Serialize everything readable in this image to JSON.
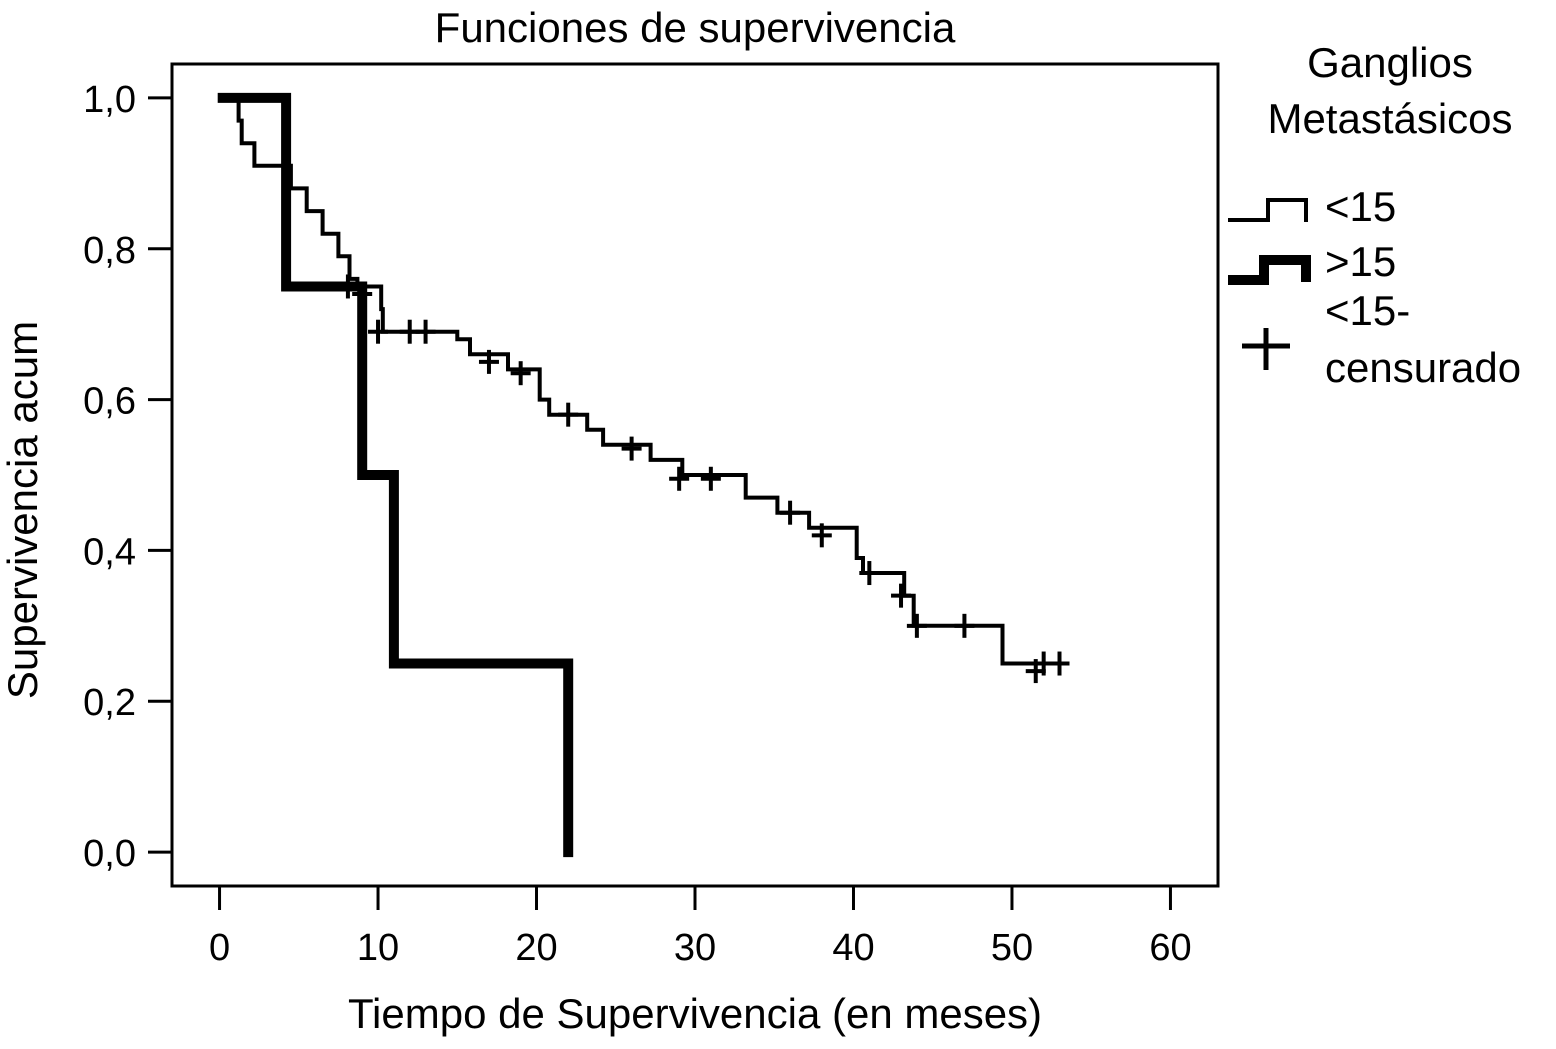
{
  "chart_data": {
    "type": "line",
    "title": "Funciones de supervivencia",
    "xlabel": "Tiempo de Supervivencia (en meses)",
    "ylabel": "Supervivencia acum",
    "xlim": [
      -3,
      63
    ],
    "ylim": [
      -0.045,
      1.045
    ],
    "x_ticks": [
      0,
      10,
      20,
      30,
      40,
      50,
      60
    ],
    "x_tick_labels": [
      "0",
      "10",
      "20",
      "30",
      "40",
      "50",
      "60"
    ],
    "y_ticks": [
      0.0,
      0.2,
      0.4,
      0.6,
      0.8,
      1.0
    ],
    "y_tick_labels": [
      "0,0",
      "0,2",
      "0,4",
      "0,6",
      "0,8",
      "1,0"
    ],
    "grid": false,
    "legend": {
      "title_lines": [
        "Ganglios",
        "Metastásicos"
      ],
      "placement": "right",
      "entries": [
        "<15",
        ">15"
      ],
      "censored_label_lines": [
        "<15-",
        "censurado"
      ]
    },
    "series": [
      {
        "name": "<15",
        "step": true,
        "color": "#000000",
        "weight": "thin",
        "points": [
          [
            0.2,
            1.0
          ],
          [
            1.2,
            0.97
          ],
          [
            1.4,
            0.94
          ],
          [
            2.2,
            0.91
          ],
          [
            4.5,
            0.88
          ],
          [
            5.5,
            0.85
          ],
          [
            6.5,
            0.82
          ],
          [
            7.5,
            0.79
          ],
          [
            8.2,
            0.76
          ],
          [
            8.7,
            0.75
          ],
          [
            10.2,
            0.72
          ],
          [
            10.3,
            0.69
          ],
          [
            15.0,
            0.68
          ],
          [
            15.8,
            0.66
          ],
          [
            18.2,
            0.64
          ],
          [
            20.2,
            0.6
          ],
          [
            20.8,
            0.58
          ],
          [
            23.2,
            0.56
          ],
          [
            24.2,
            0.54
          ],
          [
            27.2,
            0.52
          ],
          [
            29.2,
            0.5
          ],
          [
            33.2,
            0.47
          ],
          [
            35.2,
            0.45
          ],
          [
            37.2,
            0.43
          ],
          [
            40.2,
            0.39
          ],
          [
            40.6,
            0.37
          ],
          [
            43.2,
            0.34
          ],
          [
            43.8,
            0.3
          ],
          [
            49.4,
            0.25
          ],
          [
            53.4,
            0.25
          ]
        ],
        "censored": [
          [
            8.1,
            0.75
          ],
          [
            9.0,
            0.74
          ],
          [
            10.0,
            0.69
          ],
          [
            12.0,
            0.69
          ],
          [
            13.0,
            0.69
          ],
          [
            17.0,
            0.65
          ],
          [
            19.0,
            0.635
          ],
          [
            22.0,
            0.58
          ],
          [
            26.0,
            0.535
          ],
          [
            29.0,
            0.495
          ],
          [
            31.0,
            0.495
          ],
          [
            36.0,
            0.45
          ],
          [
            38.0,
            0.42
          ],
          [
            41.0,
            0.37
          ],
          [
            43.0,
            0.34
          ],
          [
            44.0,
            0.3
          ],
          [
            47.0,
            0.3
          ],
          [
            51.5,
            0.24
          ],
          [
            52.0,
            0.25
          ],
          [
            53.0,
            0.25
          ]
        ]
      },
      {
        "name": ">15",
        "step": true,
        "color": "#000000",
        "weight": "thick",
        "points": [
          [
            0.2,
            1.0
          ],
          [
            4.2,
            0.75
          ],
          [
            9.0,
            0.75
          ],
          [
            9.0,
            0.5
          ],
          [
            11.0,
            0.25
          ],
          [
            22.0,
            0.0
          ]
        ]
      }
    ]
  }
}
